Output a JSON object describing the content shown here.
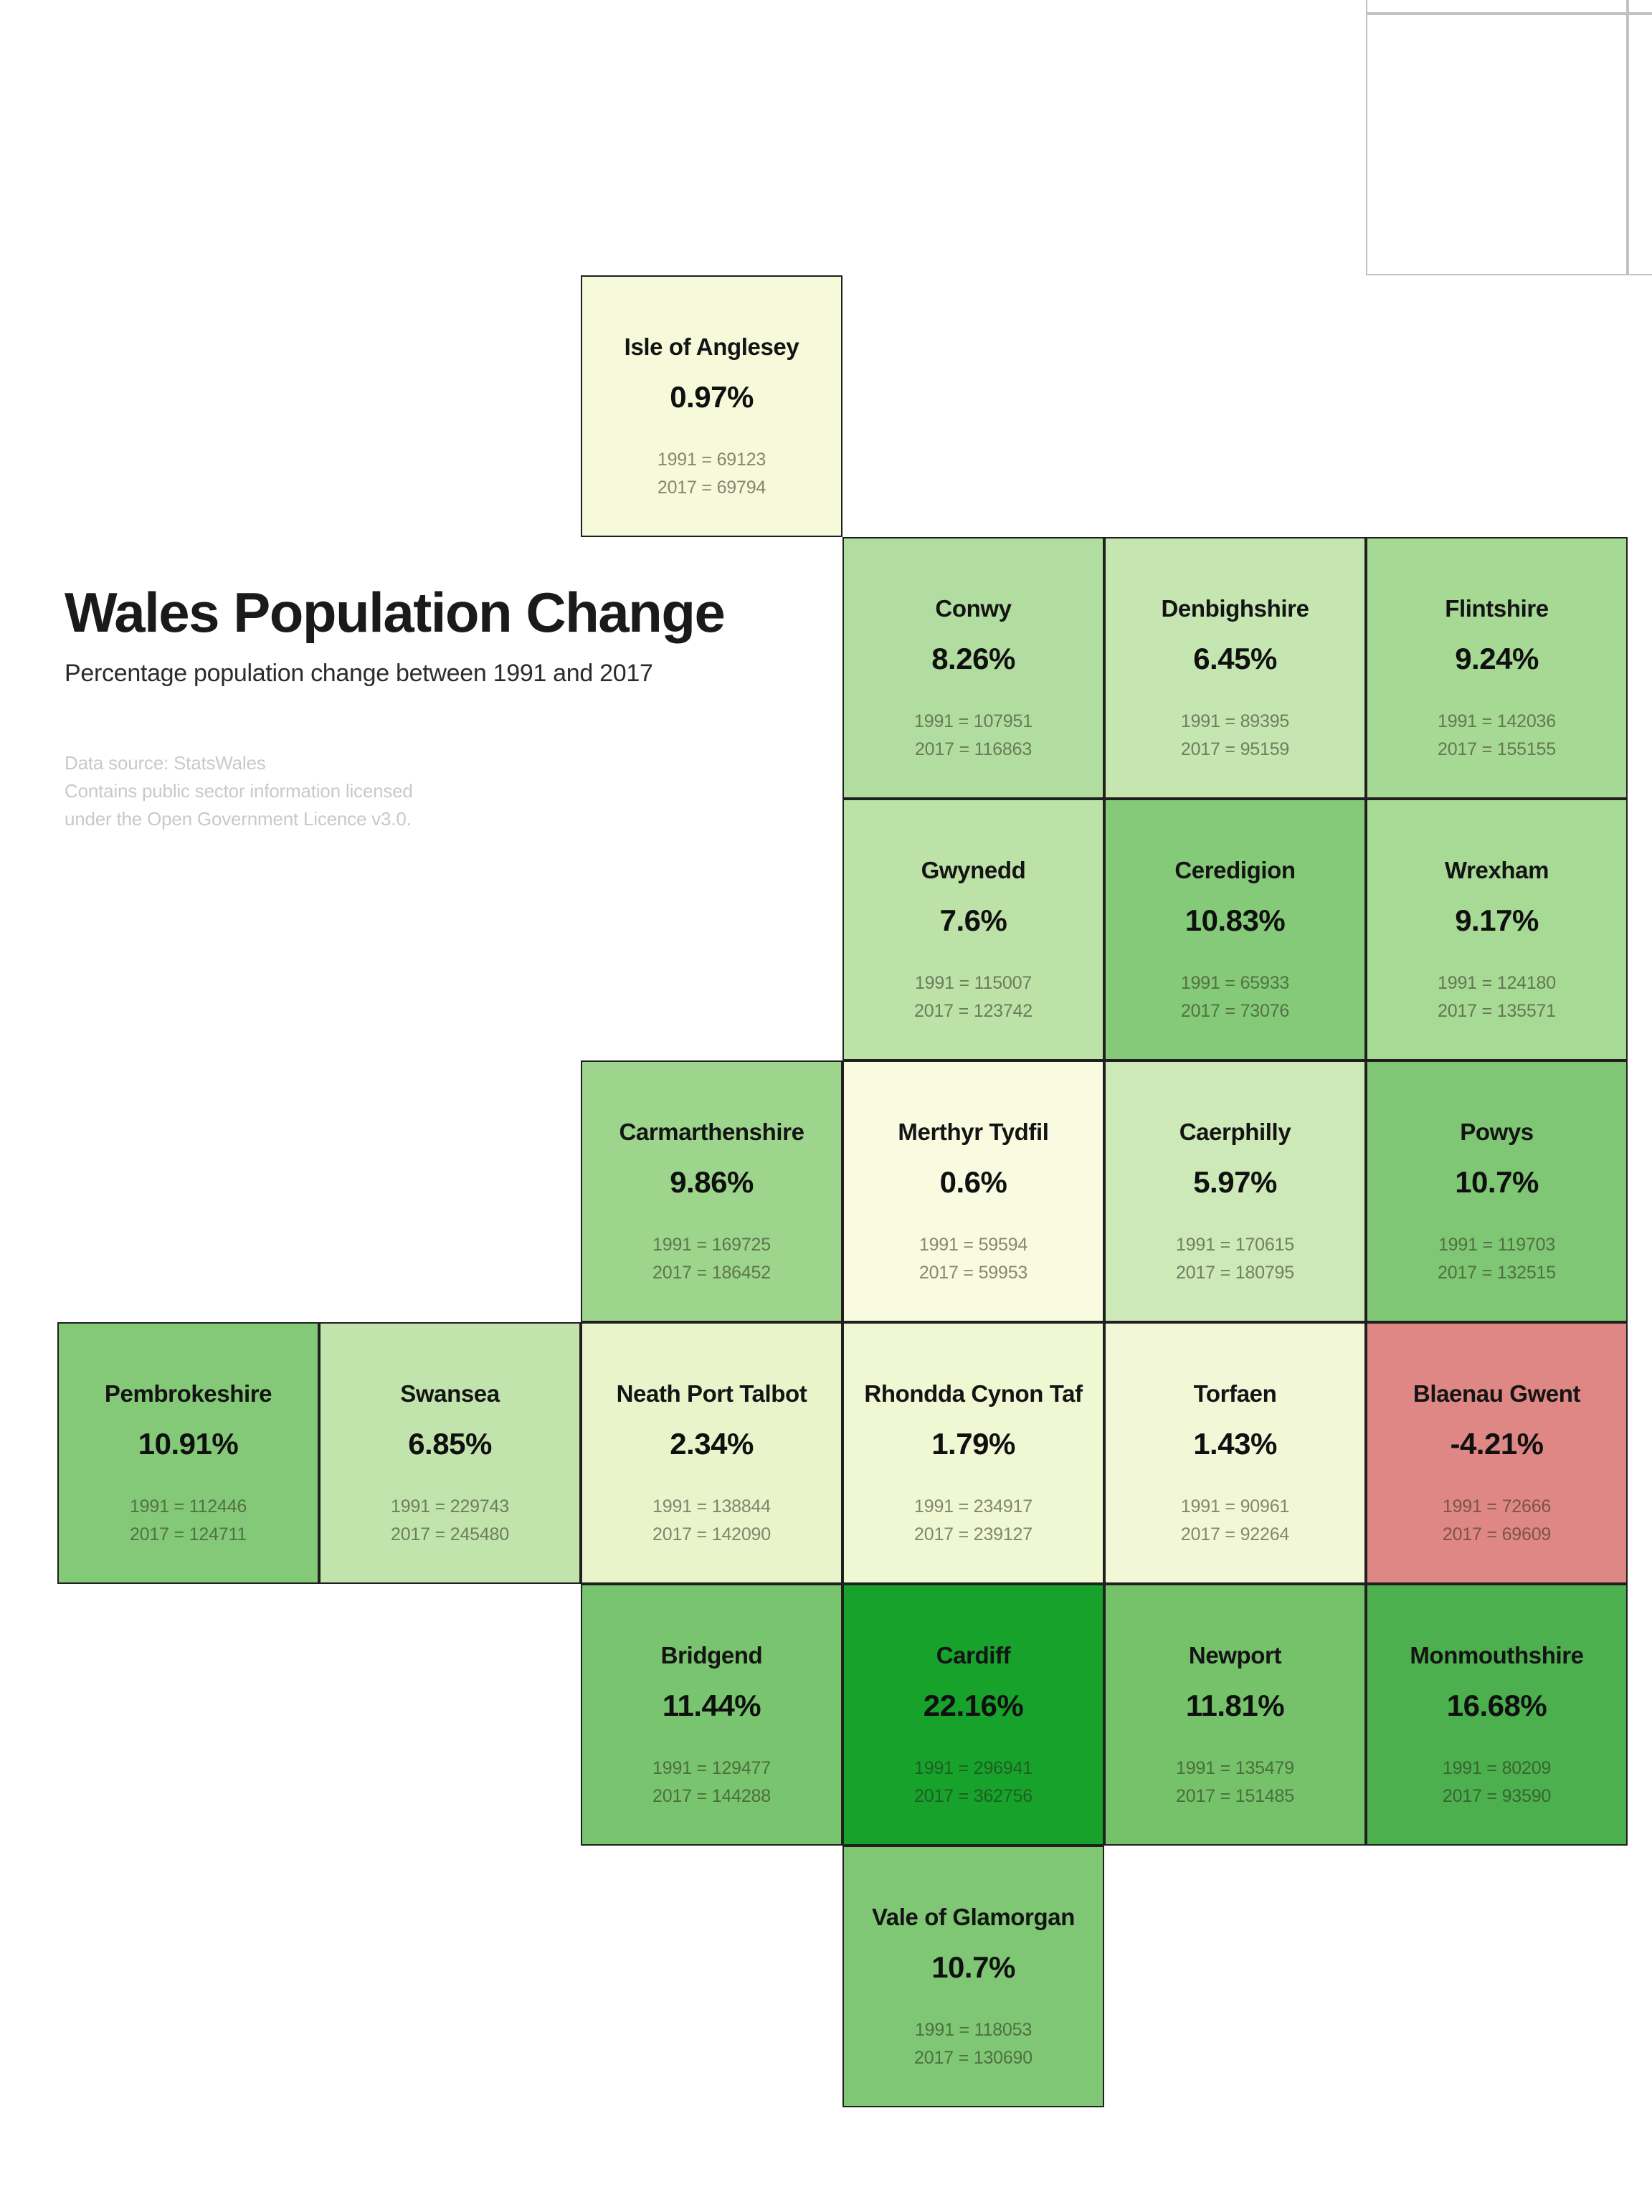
{
  "header": {
    "title": "Wales Population Change",
    "subtitle": "Percentage population change between 1991 and 2017",
    "source_lines": [
      "Data source: StatsWales",
      "Contains public sector information licensed",
      "under the Open Government Licence v3.0."
    ]
  },
  "chart_data": {
    "type": "heatmap",
    "subtype": "tile-cartogram",
    "title": "Wales Population Change",
    "subtitle": "Percentage population change between 1991 and 2017",
    "value_label": "% population change between 1991 and 2017",
    "layout_hint": "tile grid map of Wales; grid col/row encode approximate geography; color encodes % change (red negative, pale yellow ~0, dark green high)",
    "color_scale": {
      "negative": "#df8784",
      "zero": "#f8fbdf",
      "max": "#17a22c"
    },
    "year_labels": [
      "1991",
      "2017"
    ],
    "tiles": [
      {
        "name": "Isle of Anglesey",
        "pct": "0.97%",
        "pct_value": 0.97,
        "pop_1991": 69123,
        "pop_2017": 69794,
        "col": 2,
        "row": 1,
        "color": "#f6f9da"
      },
      {
        "name": "Conwy",
        "pct": "8.26%",
        "pct_value": 8.26,
        "pop_1991": 107951,
        "pop_2017": 116863,
        "col": 3,
        "row": 2,
        "color": "#b2dda0"
      },
      {
        "name": "Denbighshire",
        "pct": "6.45%",
        "pct_value": 6.45,
        "pop_1991": 89395,
        "pop_2017": 95159,
        "col": 4,
        "row": 2,
        "color": "#c5e6b1"
      },
      {
        "name": "Flintshire",
        "pct": "9.24%",
        "pct_value": 9.24,
        "pop_1991": 142036,
        "pop_2017": 155155,
        "col": 5,
        "row": 2,
        "color": "#a6d994"
      },
      {
        "name": "Gwynedd",
        "pct": "7.6%",
        "pct_value": 7.6,
        "pop_1991": 115007,
        "pop_2017": 123742,
        "col": 3,
        "row": 3,
        "color": "#bce2a8"
      },
      {
        "name": "Ceredigion",
        "pct": "10.83%",
        "pct_value": 10.83,
        "pop_1991": 65933,
        "pop_2017": 73076,
        "col": 4,
        "row": 3,
        "color": "#85ca78"
      },
      {
        "name": "Wrexham",
        "pct": "9.17%",
        "pct_value": 9.17,
        "pop_1991": 124180,
        "pop_2017": 135571,
        "col": 5,
        "row": 3,
        "color": "#a7da95"
      },
      {
        "name": "Carmarthenshire",
        "pct": "9.86%",
        "pct_value": 9.86,
        "pop_1991": 169725,
        "pop_2017": 186452,
        "col": 2,
        "row": 4,
        "color": "#9dd58c"
      },
      {
        "name": "Merthyr Tydfil",
        "pct": "0.6%",
        "pct_value": 0.6,
        "pop_1991": 59594,
        "pop_2017": 59953,
        "col": 3,
        "row": 4,
        "color": "#f8fbdf"
      },
      {
        "name": "Caerphilly",
        "pct": "5.97%",
        "pct_value": 5.97,
        "pop_1991": 170615,
        "pop_2017": 180795,
        "col": 4,
        "row": 4,
        "color": "#cce9b7"
      },
      {
        "name": "Powys",
        "pct": "10.7%",
        "pct_value": 10.7,
        "pop_1991": 119703,
        "pop_2017": 132515,
        "col": 5,
        "row": 4,
        "color": "#7fc774"
      },
      {
        "name": "Pembrokeshire",
        "pct": "10.91%",
        "pct_value": 10.91,
        "pop_1991": 112446,
        "pop_2017": 124711,
        "col": 0,
        "row": 5,
        "color": "#84c978"
      },
      {
        "name": "Swansea",
        "pct": "6.85%",
        "pct_value": 6.85,
        "pop_1991": 229743,
        "pop_2017": 245480,
        "col": 1,
        "row": 5,
        "color": "#c1e4ad"
      },
      {
        "name": "Neath Port Talbot",
        "pct": "2.34%",
        "pct_value": 2.34,
        "pop_1991": 138844,
        "pop_2017": 142090,
        "col": 2,
        "row": 5,
        "color": "#e9f4cb"
      },
      {
        "name": "Rhondda Cynon Taf",
        "pct": "1.79%",
        "pct_value": 1.79,
        "pop_1991": 234917,
        "pop_2017": 239127,
        "col": 3,
        "row": 5,
        "color": "#eff7d3"
      },
      {
        "name": "Torfaen",
        "pct": "1.43%",
        "pct_value": 1.43,
        "pop_1991": 90961,
        "pop_2017": 92264,
        "col": 4,
        "row": 5,
        "color": "#f2f8d7"
      },
      {
        "name": "Blaenau Gwent",
        "pct": "-4.21%",
        "pct_value": -4.21,
        "pop_1991": 72666,
        "pop_2017": 69609,
        "col": 5,
        "row": 5,
        "color": "#df8784"
      },
      {
        "name": "Bridgend",
        "pct": "11.44%",
        "pct_value": 11.44,
        "pop_1991": 129477,
        "pop_2017": 144288,
        "col": 2,
        "row": 6,
        "color": "#79c46e"
      },
      {
        "name": "Cardiff",
        "pct": "22.16%",
        "pct_value": 22.16,
        "pop_1991": 296941,
        "pop_2017": 362756,
        "col": 3,
        "row": 6,
        "color": "#17a22c"
      },
      {
        "name": "Newport",
        "pct": "11.81%",
        "pct_value": 11.81,
        "pop_1991": 135479,
        "pop_2017": 151485,
        "col": 4,
        "row": 6,
        "color": "#75c26b"
      },
      {
        "name": "Monmouthshire",
        "pct": "16.68%",
        "pct_value": 16.68,
        "pop_1991": 80209,
        "pop_2017": 93590,
        "col": 5,
        "row": 6,
        "color": "#4cb04e"
      },
      {
        "name": "Vale of Glamorgan",
        "pct": "10.7%",
        "pct_value": 10.7,
        "pop_1991": 118053,
        "pop_2017": 130690,
        "col": 3,
        "row": 7,
        "color": "#7fc774"
      }
    ],
    "empty_tiles": [
      {
        "col": 5,
        "row": -1
      },
      {
        "col": 6,
        "row": -1
      },
      {
        "col": 5,
        "row": 0
      },
      {
        "col": 6,
        "row": 0
      }
    ]
  }
}
